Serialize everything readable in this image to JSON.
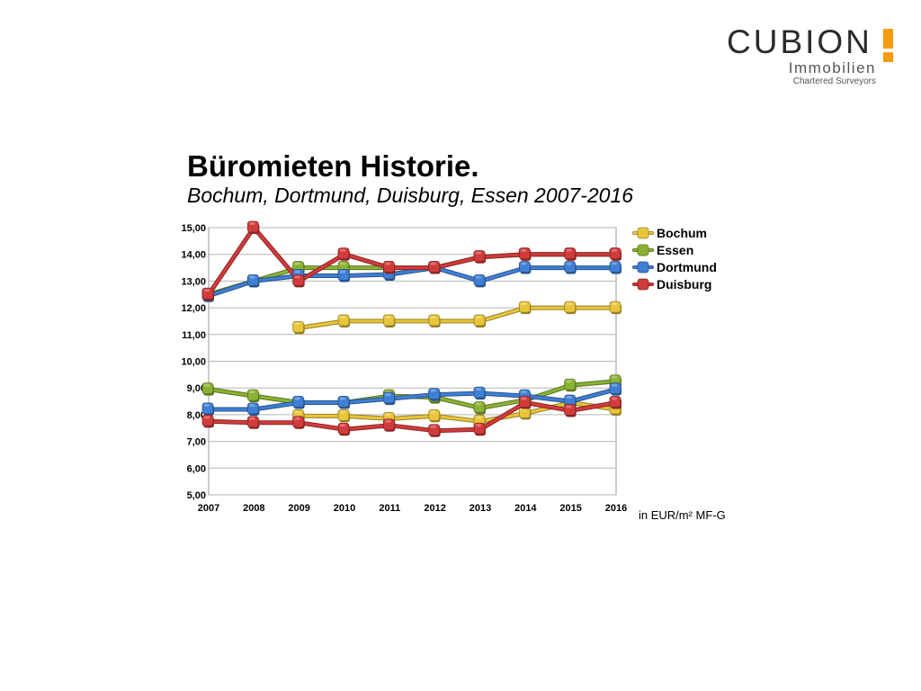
{
  "logo": {
    "word": "CUBION",
    "line1": "Immobilien",
    "line2": "Chartered Surveyors",
    "accent_color": "#f39c12"
  },
  "header": {
    "title": "Büromieten Historie.",
    "subtitle": "Bochum, Dortmund, Duisburg, Essen  2007-2016"
  },
  "chart_data": {
    "type": "line",
    "unit_note": "in EUR/m² MF-G",
    "x": [
      "2007",
      "2008",
      "2009",
      "2010",
      "2011",
      "2012",
      "2013",
      "2014",
      "2015",
      "2016"
    ],
    "y_ticks": [
      "5,00",
      "6,00",
      "7,00",
      "8,00",
      "9,00",
      "10,00",
      "11,00",
      "12,00",
      "13,00",
      "14,00",
      "15,00"
    ],
    "ylim": [
      5,
      15
    ],
    "grid": true,
    "legend_position": "right-top",
    "legend": [
      {
        "name": "Bochum",
        "color": "#e8c53a"
      },
      {
        "name": "Essen",
        "color": "#8ab232"
      },
      {
        "name": "Dortmund",
        "color": "#3f7fd6"
      },
      {
        "name": "Duisburg",
        "color": "#d23b3b"
      }
    ],
    "series": [
      {
        "group": "top",
        "name": "Bochum",
        "color": "#e8c53a",
        "values": [
          null,
          null,
          11.25,
          11.5,
          11.5,
          11.5,
          11.5,
          12.0,
          12.0,
          12.0
        ]
      },
      {
        "group": "top",
        "name": "Essen",
        "color": "#8ab232",
        "values": [
          12.5,
          13.0,
          13.5,
          13.5,
          13.5,
          13.5,
          13.9,
          14.0,
          14.0,
          14.0
        ]
      },
      {
        "group": "top",
        "name": "Dortmund",
        "color": "#3f7fd6",
        "values": [
          12.45,
          13.0,
          13.2,
          13.2,
          13.25,
          13.5,
          13.0,
          13.5,
          13.5,
          13.5
        ]
      },
      {
        "group": "top",
        "name": "Duisburg",
        "color": "#d23b3b",
        "values": [
          12.5,
          15.0,
          13.0,
          14.0,
          13.5,
          13.5,
          13.9,
          14.0,
          14.0,
          14.0
        ]
      },
      {
        "group": "bottom",
        "name": "Bochum",
        "color": "#e8c53a",
        "values": [
          null,
          null,
          7.95,
          7.95,
          7.85,
          7.95,
          7.75,
          8.05,
          8.45,
          8.2
        ]
      },
      {
        "group": "bottom",
        "name": "Essen",
        "color": "#8ab232",
        "values": [
          8.95,
          8.7,
          8.45,
          8.45,
          8.7,
          8.65,
          8.25,
          8.55,
          9.1,
          9.25
        ]
      },
      {
        "group": "bottom",
        "name": "Dortmund",
        "color": "#3f7fd6",
        "values": [
          8.2,
          8.2,
          8.45,
          8.45,
          8.6,
          8.75,
          8.8,
          8.7,
          8.5,
          8.95
        ]
      },
      {
        "group": "bottom",
        "name": "Duisburg",
        "color": "#d23b3b",
        "values": [
          7.75,
          7.7,
          7.7,
          7.45,
          7.6,
          7.4,
          7.45,
          8.45,
          8.15,
          8.45
        ]
      }
    ]
  }
}
